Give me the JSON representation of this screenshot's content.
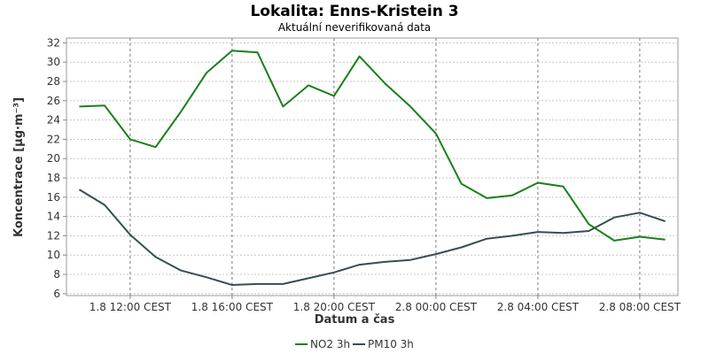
{
  "chart_data": {
    "type": "line",
    "title": "Lokalita: Enns-Kristein 3",
    "subtitle": "Aktuální neverifikovaná data",
    "xlabel": "Datum a čas",
    "ylabel": "Koncentrace [µg·m⁻³]",
    "ylim": [
      5.8,
      32.5
    ],
    "yticks": [
      6,
      8,
      10,
      12,
      14,
      16,
      18,
      20,
      22,
      24,
      26,
      28,
      30,
      32
    ],
    "x_unit": "hours from 1.8 10:00 CEST",
    "xlim": [
      -0.5,
      23.5
    ],
    "xticks": [
      {
        "x": 2,
        "label": "1.8 12:00 CEST"
      },
      {
        "x": 6,
        "label": "1.8 16:00 CEST"
      },
      {
        "x": 10,
        "label": "1.8 20:00 CEST"
      },
      {
        "x": 14,
        "label": "2.8 00:00 CEST"
      },
      {
        "x": 18,
        "label": "2.8 04:00 CEST"
      },
      {
        "x": 22,
        "label": "2.8 08:00 CEST"
      }
    ],
    "grid": true,
    "legend_position": "bottom",
    "x": [
      0,
      1,
      2,
      3,
      4,
      5,
      6,
      7,
      8,
      9,
      10,
      11,
      12,
      13,
      14,
      15,
      16,
      17,
      18,
      19,
      20,
      21,
      22,
      23
    ],
    "series": [
      {
        "name": "NO2 3h",
        "color": "#1a801a",
        "values": [
          25.4,
          25.5,
          22.0,
          21.2,
          24.9,
          28.9,
          31.2,
          31.0,
          25.4,
          27.6,
          26.5,
          30.6,
          27.8,
          25.4,
          22.6,
          17.4,
          15.9,
          16.2,
          17.5,
          17.1,
          13.2,
          11.5,
          11.9,
          11.6
        ]
      },
      {
        "name": "PM10 3h",
        "color": "#364e52",
        "values": [
          16.8,
          15.2,
          12.1,
          9.8,
          8.4,
          7.7,
          6.9,
          7.0,
          7.0,
          7.6,
          8.2,
          9.0,
          9.3,
          9.5,
          10.1,
          10.8,
          11.7,
          12.0,
          12.4,
          12.3,
          12.5,
          13.9,
          14.4,
          13.5
        ]
      }
    ]
  }
}
